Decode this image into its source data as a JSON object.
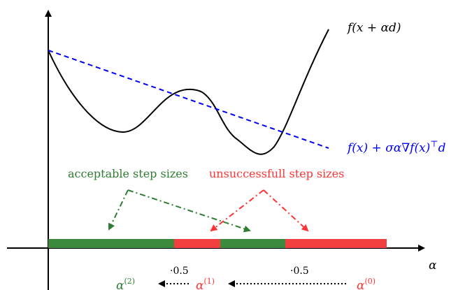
{
  "labels": {
    "function": "f(x + αd)",
    "armijo_line": "f(x) + σα∇f(x)",
    "armijo_sup": "⊤",
    "armijo_tail": "d",
    "x_axis": "α",
    "acceptable": "acceptable step sizes",
    "unsuccessful": "unsuccessfull step sizes",
    "factor_1": "·0.5",
    "factor_2": "·0.5",
    "alpha_sym": "α",
    "alpha2_sup": "(2)",
    "alpha1_sup": "(1)",
    "alpha0_sup": "(0)"
  },
  "colors": {
    "curve": "#000000",
    "armijo": "#0000ff",
    "acceptable": "#2e7d32",
    "acceptable_bar": "#3b8a3e",
    "unsuccessful": "#ff3333",
    "unsuccessful_bar": "#f24040",
    "axis": "#000000"
  }
}
